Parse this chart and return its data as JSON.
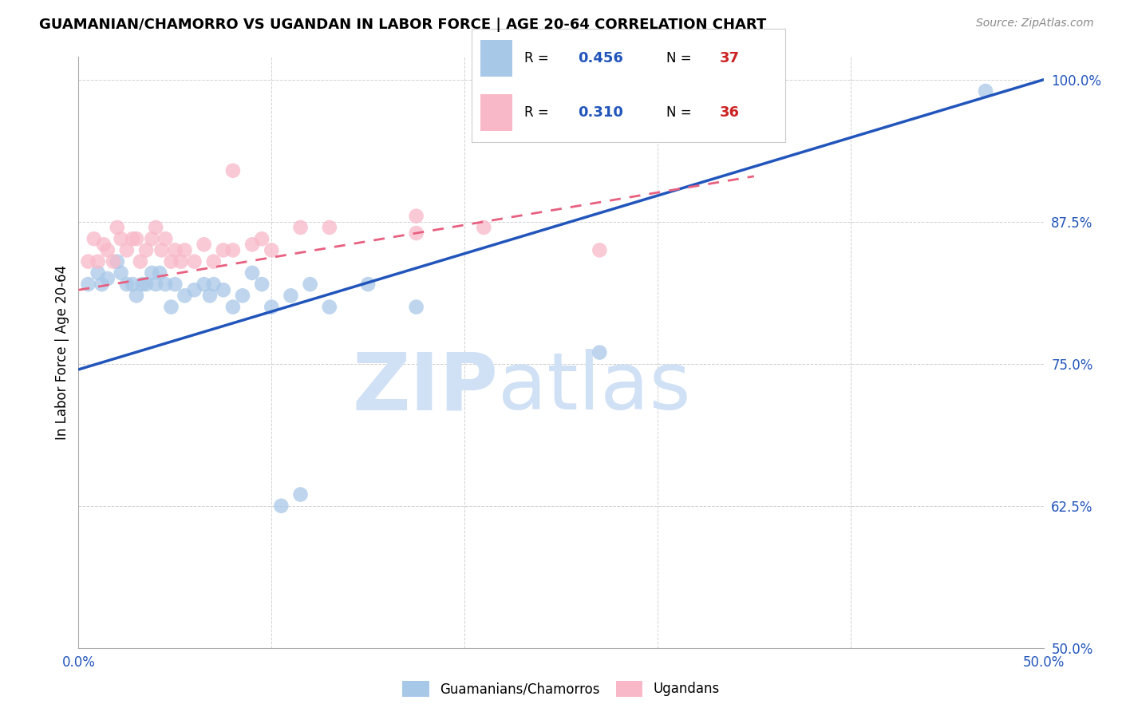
{
  "title": "GUAMANIAN/CHAMORRO VS UGANDAN IN LABOR FORCE | AGE 20-64 CORRELATION CHART",
  "source": "Source: ZipAtlas.com",
  "ylabel": "In Labor Force | Age 20-64",
  "xlim": [
    0.0,
    0.5
  ],
  "ylim": [
    0.5,
    1.02
  ],
  "xticks": [
    0.0,
    0.1,
    0.2,
    0.3,
    0.4,
    0.5
  ],
  "xticklabels": [
    "0.0%",
    "",
    "",
    "",
    "",
    "50.0%"
  ],
  "yticks": [
    0.5,
    0.625,
    0.75,
    0.875,
    1.0
  ],
  "yticklabels": [
    "50.0%",
    "62.5%",
    "75.0%",
    "87.5%",
    "100.0%"
  ],
  "blue_R": "0.456",
  "blue_N": "37",
  "pink_R": "0.310",
  "pink_N": "36",
  "blue_scatter_color": "#a8c8e8",
  "pink_scatter_color": "#f8b8c8",
  "blue_line_color": "#2255bb",
  "pink_line_color": "#e86080",
  "legend_r_color": "#2255bb",
  "legend_n_color": "#cc2222",
  "watermark_zip": "ZIP",
  "watermark_atlas": "atlas",
  "watermark_color": "#d0e0f5",
  "blue_line_x0": 0.0,
  "blue_line_y0": 0.745,
  "blue_line_x1": 0.5,
  "blue_line_y1": 1.0,
  "pink_line_x0": 0.0,
  "pink_line_y0": 0.815,
  "pink_line_x1": 0.35,
  "pink_line_y1": 0.915,
  "blue_x": [
    0.005,
    0.01,
    0.012,
    0.015,
    0.02,
    0.022,
    0.025,
    0.028,
    0.03,
    0.033,
    0.035,
    0.038,
    0.04,
    0.042,
    0.045,
    0.048,
    0.05,
    0.055,
    0.06,
    0.065,
    0.068,
    0.07,
    0.075,
    0.08,
    0.085,
    0.09,
    0.095,
    0.1,
    0.11,
    0.12,
    0.13,
    0.15,
    0.175,
    0.27,
    0.105,
    0.115,
    0.47
  ],
  "blue_y": [
    0.82,
    0.83,
    0.82,
    0.825,
    0.84,
    0.83,
    0.82,
    0.82,
    0.81,
    0.82,
    0.82,
    0.83,
    0.82,
    0.83,
    0.82,
    0.8,
    0.82,
    0.81,
    0.815,
    0.82,
    0.81,
    0.82,
    0.815,
    0.8,
    0.81,
    0.83,
    0.82,
    0.8,
    0.81,
    0.82,
    0.8,
    0.82,
    0.8,
    0.76,
    0.625,
    0.635,
    0.99
  ],
  "pink_x": [
    0.005,
    0.008,
    0.01,
    0.013,
    0.015,
    0.018,
    0.02,
    0.022,
    0.025,
    0.028,
    0.03,
    0.032,
    0.035,
    0.038,
    0.04,
    0.043,
    0.045,
    0.048,
    0.05,
    0.053,
    0.055,
    0.06,
    0.065,
    0.07,
    0.075,
    0.08,
    0.09,
    0.095,
    0.1,
    0.115,
    0.13,
    0.175,
    0.27,
    0.175,
    0.21,
    0.08
  ],
  "pink_y": [
    0.84,
    0.86,
    0.84,
    0.855,
    0.85,
    0.84,
    0.87,
    0.86,
    0.85,
    0.86,
    0.86,
    0.84,
    0.85,
    0.86,
    0.87,
    0.85,
    0.86,
    0.84,
    0.85,
    0.84,
    0.85,
    0.84,
    0.855,
    0.84,
    0.85,
    0.85,
    0.855,
    0.86,
    0.85,
    0.87,
    0.87,
    0.865,
    0.85,
    0.88,
    0.87,
    0.92
  ]
}
